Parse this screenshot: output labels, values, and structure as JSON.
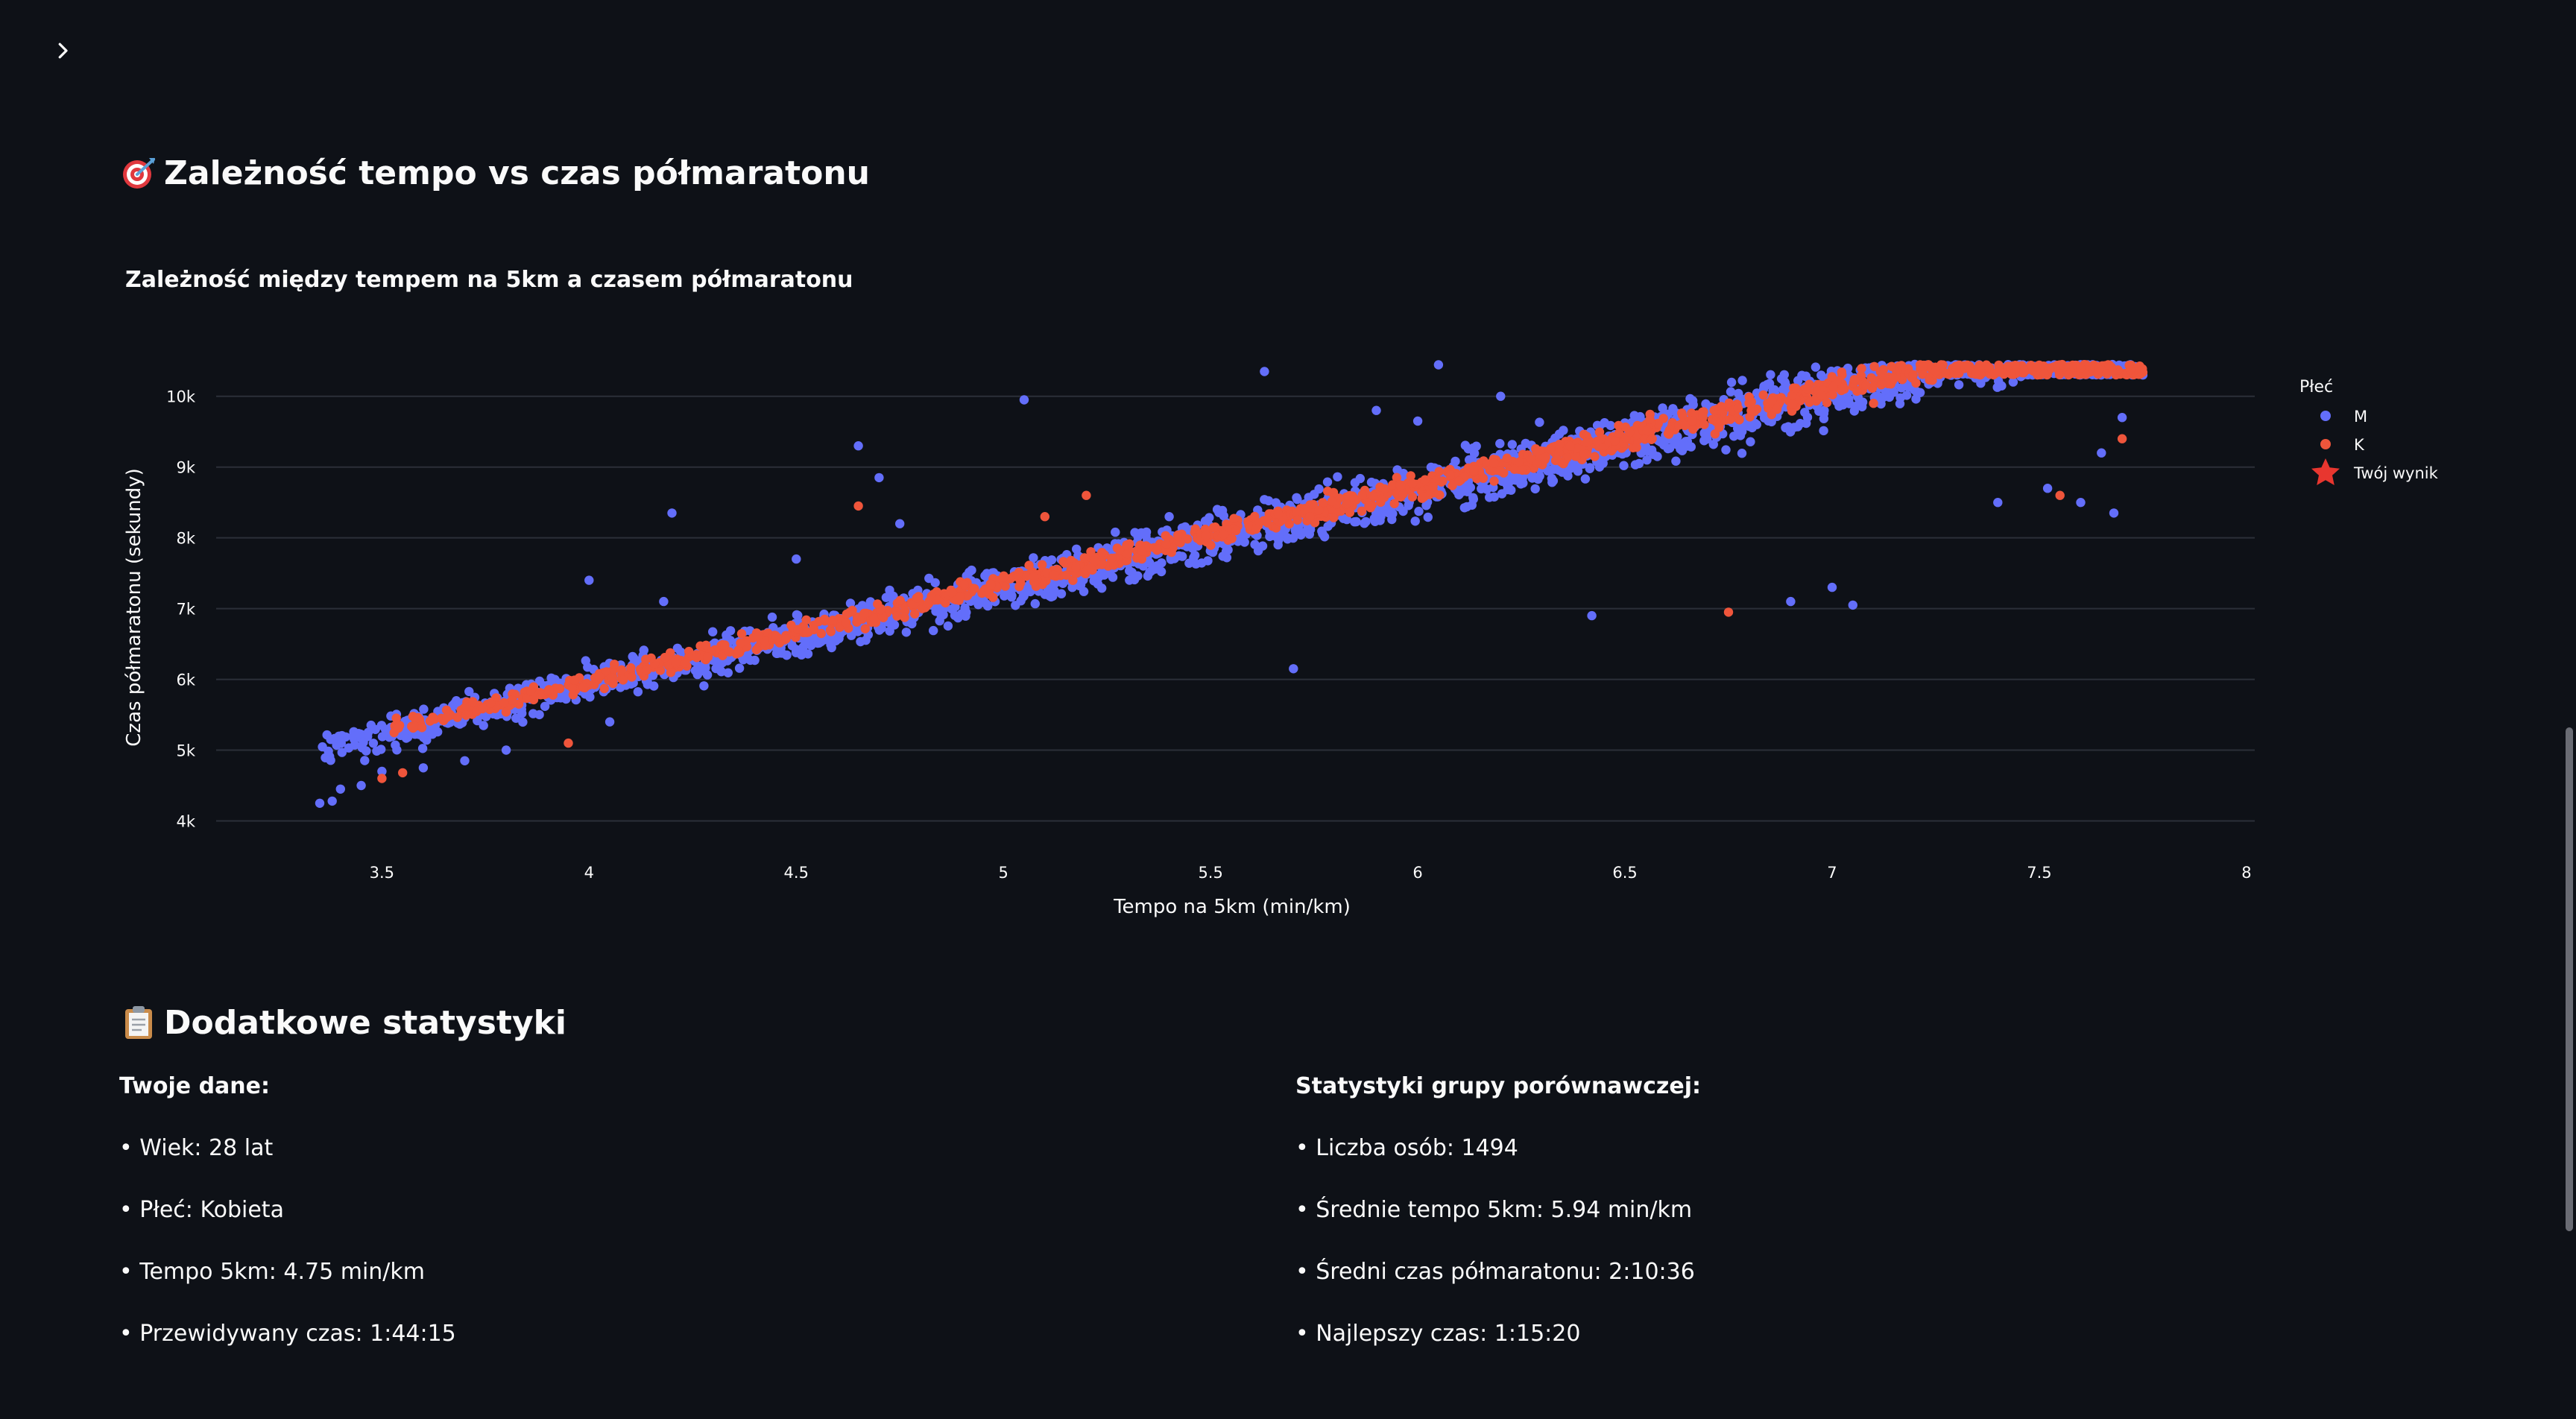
{
  "sidebar": {
    "toggle_icon": "chevron-right-icon"
  },
  "section1": {
    "title": "Zależność tempo vs czas półmaratonu",
    "icon": "target-icon"
  },
  "chart_data": {
    "type": "scatter",
    "title": "Zależność między tempem na 5km a czasem półmaratonu",
    "xlabel": "Tempo na 5km (min/km)",
    "ylabel": "Czas półmaratonu (sekundy)",
    "xlim": [
      3.1,
      8.02
    ],
    "ylim": [
      3700,
      10650
    ],
    "x_ticks": [
      3.5,
      4,
      4.5,
      5,
      5.5,
      6,
      6.5,
      7,
      7.5,
      8
    ],
    "x_tick_labels": [
      "3.5",
      "4",
      "4.5",
      "5",
      "5.5",
      "6",
      "6.5",
      "7",
      "7.5",
      "8"
    ],
    "y_ticks": [
      4000,
      5000,
      6000,
      7000,
      8000,
      9000,
      10000
    ],
    "y_tick_labels": [
      "4k",
      "5k",
      "6k",
      "7k",
      "8k",
      "9k",
      "10k"
    ],
    "grid": "horizontal",
    "legend_title": "Płeć",
    "legend_placement": "top-right",
    "series": [
      {
        "name": "M",
        "color": "#636efa",
        "trend": {
          "slope": 1380,
          "intercept": 400,
          "spread": 230,
          "x_range": [
            3.35,
            7.75
          ]
        },
        "points": [
          [
            3.35,
            4250
          ],
          [
            3.38,
            4280
          ],
          [
            3.4,
            4450
          ],
          [
            3.45,
            4500
          ],
          [
            3.5,
            4700
          ],
          [
            3.6,
            4750
          ],
          [
            3.7,
            4850
          ],
          [
            3.8,
            5000
          ],
          [
            3.85,
            5900
          ],
          [
            4.0,
            7400
          ],
          [
            4.05,
            5400
          ],
          [
            4.18,
            7100
          ],
          [
            4.2,
            8350
          ],
          [
            4.5,
            7700
          ],
          [
            4.7,
            8850
          ],
          [
            4.65,
            9300
          ],
          [
            4.75,
            8200
          ],
          [
            5.05,
            9950
          ],
          [
            5.4,
            8300
          ],
          [
            5.63,
            10350
          ],
          [
            5.7,
            6150
          ],
          [
            5.9,
            9800
          ],
          [
            6.0,
            9650
          ],
          [
            6.05,
            10500
          ],
          [
            6.2,
            10000
          ],
          [
            6.42,
            6900
          ],
          [
            6.9,
            7100
          ],
          [
            7.0,
            7300
          ],
          [
            7.05,
            7050
          ],
          [
            7.4,
            8500
          ],
          [
            7.52,
            8700
          ],
          [
            7.6,
            8500
          ],
          [
            7.68,
            8350
          ],
          [
            7.75,
            10300
          ],
          [
            7.7,
            9700
          ],
          [
            7.65,
            9200
          ]
        ]
      },
      {
        "name": "K",
        "color": "#ef553b",
        "trend": {
          "slope": 1380,
          "intercept": 450,
          "spread": 110,
          "x_range": [
            3.5,
            7.75
          ]
        },
        "points": [
          [
            3.5,
            4600
          ],
          [
            3.55,
            4680
          ],
          [
            3.95,
            5100
          ],
          [
            4.65,
            8450
          ],
          [
            5.1,
            8300
          ],
          [
            5.2,
            8600
          ],
          [
            5.5,
            7900
          ],
          [
            6.1,
            8800
          ],
          [
            6.75,
            6950
          ],
          [
            7.55,
            8600
          ],
          [
            7.7,
            9400
          ],
          [
            7.6,
            10400
          ],
          [
            7.3,
            10500
          ],
          [
            7.1,
            9900
          ]
        ]
      },
      {
        "name": "Twój wynik",
        "color": "#e8362f",
        "marker": "star",
        "points": []
      }
    ]
  },
  "section2": {
    "title": "Dodatkowe statystyki",
    "icon": "clipboard-icon"
  },
  "stats_left": {
    "title": "Twoje dane:",
    "items": [
      "• Wiek: 28 lat",
      "• Płeć: Kobieta",
      "• Tempo 5km: 4.75 min/km",
      "• Przewidywany czas: 1:44:15"
    ]
  },
  "stats_right": {
    "title": "Statystyki grupy porównawczej:",
    "items": [
      "• Liczba osób: 1494",
      "• Średnie tempo 5km: 5.94 min/km",
      "• Średni czas półmaratonu: 2:10:36",
      "• Najlepszy czas: 1:15:20"
    ]
  }
}
